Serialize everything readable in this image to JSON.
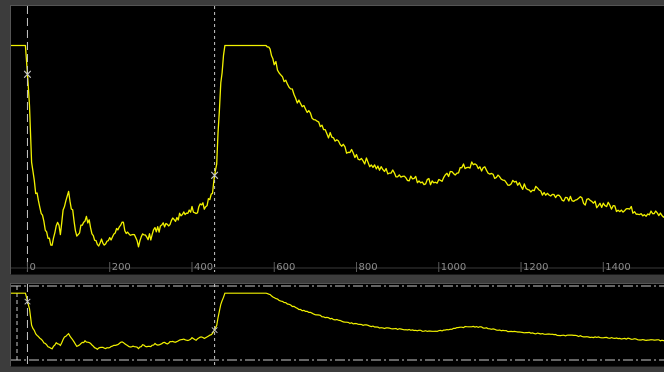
{
  "colors": {
    "background": "#3c3c3c",
    "panel": "#000000",
    "trace": "#f2f200",
    "marker": "#c8c8c8",
    "tick_text": "#8c8c8c"
  },
  "main_plot": {
    "x_ticks": [
      "0",
      "200",
      "400",
      "600",
      "800",
      "1000",
      "1200",
      "1400"
    ]
  },
  "markers": [
    {
      "name": "marker-a",
      "x": 0,
      "label": "×"
    },
    {
      "name": "marker-b",
      "x": 455,
      "label": "×"
    }
  ],
  "chart_data": {
    "type": "line",
    "x_range": [
      -40,
      1550
    ],
    "y_range": [
      0,
      100
    ],
    "series": [
      {
        "x": [
          -40,
          -5,
          5,
          10,
          20,
          30,
          40,
          50,
          60,
          70,
          80,
          90,
          100,
          110,
          120,
          130,
          140,
          150,
          160,
          170,
          180,
          190,
          200,
          210,
          220,
          230,
          240,
          250,
          260,
          270,
          280,
          290,
          300,
          310,
          320,
          330,
          340,
          350,
          360,
          370,
          380,
          390,
          400,
          410,
          420,
          430,
          440,
          450,
          460,
          470,
          480,
          490,
          500,
          510,
          520,
          530,
          540,
          550,
          560,
          570,
          580,
          590,
          600,
          620,
          640,
          660,
          680,
          700,
          720,
          740,
          760,
          780,
          800,
          820,
          840,
          860,
          880,
          900,
          920,
          940,
          960,
          980,
          1000,
          1020,
          1040,
          1060,
          1080,
          1100,
          1120,
          1140,
          1160,
          1180,
          1200,
          1220,
          1240,
          1260,
          1280,
          1300,
          1320,
          1340,
          1360,
          1380,
          1400,
          1420,
          1440,
          1460,
          1480,
          1500,
          1520,
          1550
        ],
        "y": [
          95,
          95,
          70,
          45,
          32,
          25,
          18,
          12,
          8,
          18,
          14,
          26,
          31,
          22,
          12,
          16,
          20,
          18,
          12,
          8,
          11,
          9,
          10,
          13,
          15,
          19,
          14,
          11,
          12,
          9,
          14,
          11,
          12,
          16,
          14,
          18,
          16,
          20,
          18,
          21,
          24,
          21,
          25,
          22,
          27,
          25,
          28,
          32,
          45,
          78,
          95,
          95,
          95,
          95,
          95,
          95,
          95,
          95,
          95,
          95,
          95,
          93,
          88,
          82,
          76,
          70,
          66,
          62,
          58,
          55,
          52,
          49,
          47,
          45,
          43,
          41,
          40,
          39,
          38,
          37,
          36,
          36,
          36,
          38,
          40,
          42,
          43,
          42,
          40,
          38,
          36,
          35,
          34,
          33,
          32,
          31,
          30,
          29,
          29,
          28,
          27,
          26,
          26,
          25,
          24,
          24,
          23,
          22,
          22,
          21
        ]
      }
    ]
  }
}
